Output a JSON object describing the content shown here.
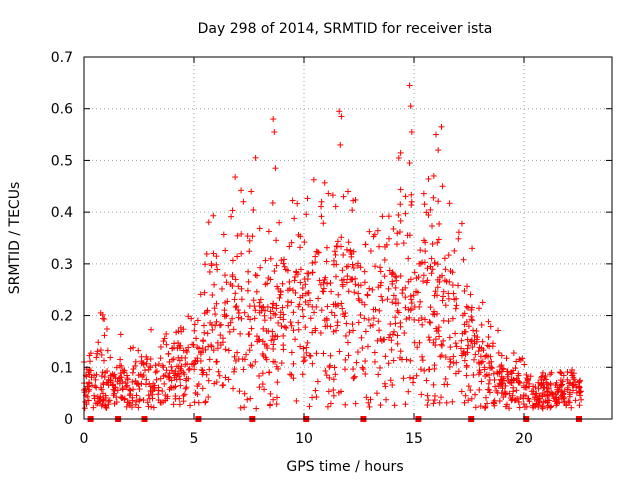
{
  "chart_data": {
    "type": "scatter",
    "title": "Day 298 of 2014, SRMTID for receiver ista",
    "xlabel": "GPS time / hours",
    "ylabel": "SRMTID / TECUs",
    "xlim": [
      0,
      24
    ],
    "ylim": [
      0,
      0.7
    ],
    "xticks": [
      0,
      5,
      10,
      15,
      20
    ],
    "yticks": [
      0,
      0.1,
      0.2,
      0.3,
      0.4,
      0.5,
      0.6,
      0.7
    ],
    "xtick_labels": [
      "0",
      "5",
      "10",
      "15",
      "20"
    ],
    "ytick_labels": [
      "0",
      "0.1",
      "0.2",
      "0.3",
      "0.4",
      "0.5",
      "0.6",
      "0.7"
    ],
    "grid": true,
    "marker": "+",
    "color": "#ff0000",
    "zero_markers_x": [
      0.3,
      1.55,
      2.75,
      5.2,
      7.65,
      10.1,
      12.7,
      15.2,
      17.6,
      20.1,
      22.5
    ],
    "envelope_x": [
      0,
      0.5,
      1,
      2,
      3,
      4,
      5,
      5.5,
      6,
      7,
      8,
      9,
      10,
      11,
      12,
      13,
      14,
      15,
      16,
      17,
      17.9,
      18.5,
      19,
      20,
      21,
      22,
      22.6
    ],
    "envelope_mean": [
      0.06,
      0.07,
      0.08,
      0.06,
      0.07,
      0.09,
      0.12,
      0.14,
      0.18,
      0.2,
      0.19,
      0.19,
      0.19,
      0.21,
      0.2,
      0.19,
      0.23,
      0.22,
      0.2,
      0.18,
      0.12,
      0.09,
      0.07,
      0.055,
      0.05,
      0.05,
      0.06
    ],
    "envelope_spread": [
      0.03,
      0.04,
      0.045,
      0.035,
      0.035,
      0.04,
      0.05,
      0.07,
      0.08,
      0.09,
      0.1,
      0.09,
      0.1,
      0.09,
      0.1,
      0.09,
      0.09,
      0.1,
      0.1,
      0.08,
      0.06,
      0.04,
      0.03,
      0.025,
      0.02,
      0.02,
      0.02
    ],
    "spikes": [
      {
        "x": 7.8,
        "y": 0.505
      },
      {
        "x": 8.6,
        "y": 0.58
      },
      {
        "x": 8.65,
        "y": 0.555
      },
      {
        "x": 8.7,
        "y": 0.485
      },
      {
        "x": 11.6,
        "y": 0.595
      },
      {
        "x": 11.7,
        "y": 0.585
      },
      {
        "x": 11.65,
        "y": 0.53
      },
      {
        "x": 14.8,
        "y": 0.645
      },
      {
        "x": 14.85,
        "y": 0.605
      },
      {
        "x": 14.9,
        "y": 0.555
      },
      {
        "x": 14.8,
        "y": 0.495
      },
      {
        "x": 16.0,
        "y": 0.55
      },
      {
        "x": 16.25,
        "y": 0.565
      },
      {
        "x": 16.1,
        "y": 0.52
      },
      {
        "x": 15.9,
        "y": 0.47
      },
      {
        "x": 12.0,
        "y": 0.44
      },
      {
        "x": 11.8,
        "y": 0.43
      },
      {
        "x": 10.8,
        "y": 0.42
      },
      {
        "x": 14.9,
        "y": 0.42
      },
      {
        "x": 7.6,
        "y": 0.44
      },
      {
        "x": 16.3,
        "y": 0.45
      }
    ]
  }
}
